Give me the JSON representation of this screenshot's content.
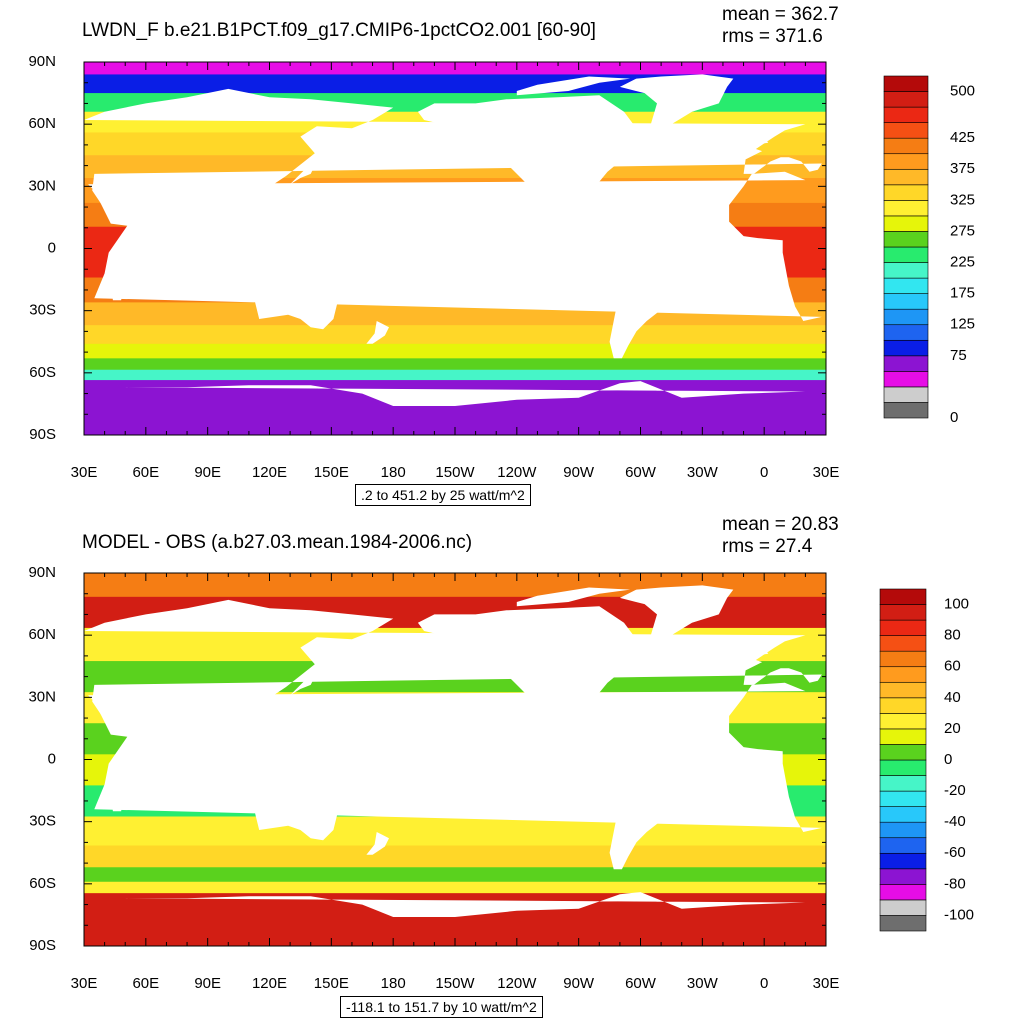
{
  "chart_data": [
    {
      "type": "heatmap",
      "title": "LWDN_F b.e21.B1PCT.f09_g17.CMIP6-1pctCO2.001 [60-90]",
      "stats": {
        "mean": "mean = 362.7",
        "rms": "rms = 371.6"
      },
      "range_label": ".2 to 451.2 by 25 watt/m^2",
      "xticks": [
        "30E",
        "60E",
        "90E",
        "120E",
        "150E",
        "180",
        "150W",
        "120W",
        "90W",
        "60W",
        "30W",
        "0",
        "30E"
      ],
      "yticks": [
        "90N",
        "60N",
        "30N",
        "0",
        "30S",
        "60S",
        "90S"
      ],
      "colorbar": {
        "colors": [
          "#6e6e6e",
          "#cdcdcd",
          "#e60de6",
          "#8c14d2",
          "#0a1ee6",
          "#1e64f0",
          "#1e96f5",
          "#28c8fa",
          "#32e6f0",
          "#46f5c8",
          "#28eb6e",
          "#5ad21e",
          "#e6f50a",
          "#fff032",
          "#ffd728",
          "#ffb928",
          "#ff9b1e",
          "#f57d14",
          "#f55014",
          "#eb2814",
          "#d21e14",
          "#b40a0a"
        ],
        "labels": [
          "0",
          "75",
          "125",
          "175",
          "225",
          "275",
          "325",
          "375",
          "425",
          "500"
        ],
        "label_at_boundary": [
          0,
          4,
          6,
          8,
          10,
          12,
          14,
          16,
          18,
          21
        ]
      },
      "bands": [
        {
          "lat": 88,
          "c": 2
        },
        {
          "lat": 80,
          "c": 4
        },
        {
          "lat": 70,
          "c": 10
        },
        {
          "lat": 62,
          "c": 13
        },
        {
          "lat": 50,
          "c": 14
        },
        {
          "lat": 40,
          "c": 15
        },
        {
          "lat": 28,
          "c": 16
        },
        {
          "lat": 16,
          "c": 17
        },
        {
          "lat": 5,
          "c": 19
        },
        {
          "lat": -8,
          "c": 19
        },
        {
          "lat": -20,
          "c": 17
        },
        {
          "lat": -32,
          "c": 15
        },
        {
          "lat": -42,
          "c": 14
        },
        {
          "lat": -50,
          "c": 12
        },
        {
          "lat": -56,
          "c": 11
        },
        {
          "lat": -61,
          "c": 9
        },
        {
          "lat": -66,
          "c": 3
        }
      ]
    },
    {
      "type": "heatmap",
      "title": "MODEL - OBS (a.b27.03.mean.1984-2006.nc)",
      "stats": {
        "mean": "mean = 20.83",
        "rms": "rms = 27.4"
      },
      "range_label": "-118.1 to 151.7 by 10 watt/m^2",
      "xticks": [
        "30E",
        "60E",
        "90E",
        "120E",
        "150E",
        "180",
        "150W",
        "120W",
        "90W",
        "60W",
        "30W",
        "0",
        "30E"
      ],
      "yticks": [
        "90N",
        "60N",
        "30N",
        "0",
        "30S",
        "60S",
        "90S"
      ],
      "colorbar": {
        "colors": [
          "#6e6e6e",
          "#cdcdcd",
          "#e60de6",
          "#8c14d2",
          "#0a1ee6",
          "#1e64f0",
          "#1e96f5",
          "#28c8fa",
          "#32e6f0",
          "#46f5c8",
          "#28eb6e",
          "#5ad21e",
          "#e6f50a",
          "#fff032",
          "#ffd728",
          "#ffb928",
          "#ff9b1e",
          "#f57d14",
          "#f55014",
          "#eb2814",
          "#d21e14",
          "#b40a0a"
        ],
        "labels": [
          "-100",
          "-80",
          "-60",
          "-40",
          "-20",
          "0",
          "20",
          "40",
          "60",
          "80",
          "100"
        ],
        "label_at_boundary": [
          1,
          3,
          5,
          7,
          9,
          11,
          13,
          15,
          17,
          19,
          21
        ]
      },
      "bands": [
        {
          "lat": 85,
          "c": 17
        },
        {
          "lat": 72,
          "c": 20
        },
        {
          "lat": 55,
          "c": 13
        },
        {
          "lat": 40,
          "c": 11
        },
        {
          "lat": 25,
          "c": 13
        },
        {
          "lat": 10,
          "c": 11
        },
        {
          "lat": -5,
          "c": 12
        },
        {
          "lat": -20,
          "c": 10
        },
        {
          "lat": -35,
          "c": 13
        },
        {
          "lat": -48,
          "c": 14
        },
        {
          "lat": -56,
          "c": 11
        },
        {
          "lat": -62,
          "c": 13
        },
        {
          "lat": -67,
          "c": 20
        }
      ]
    }
  ]
}
